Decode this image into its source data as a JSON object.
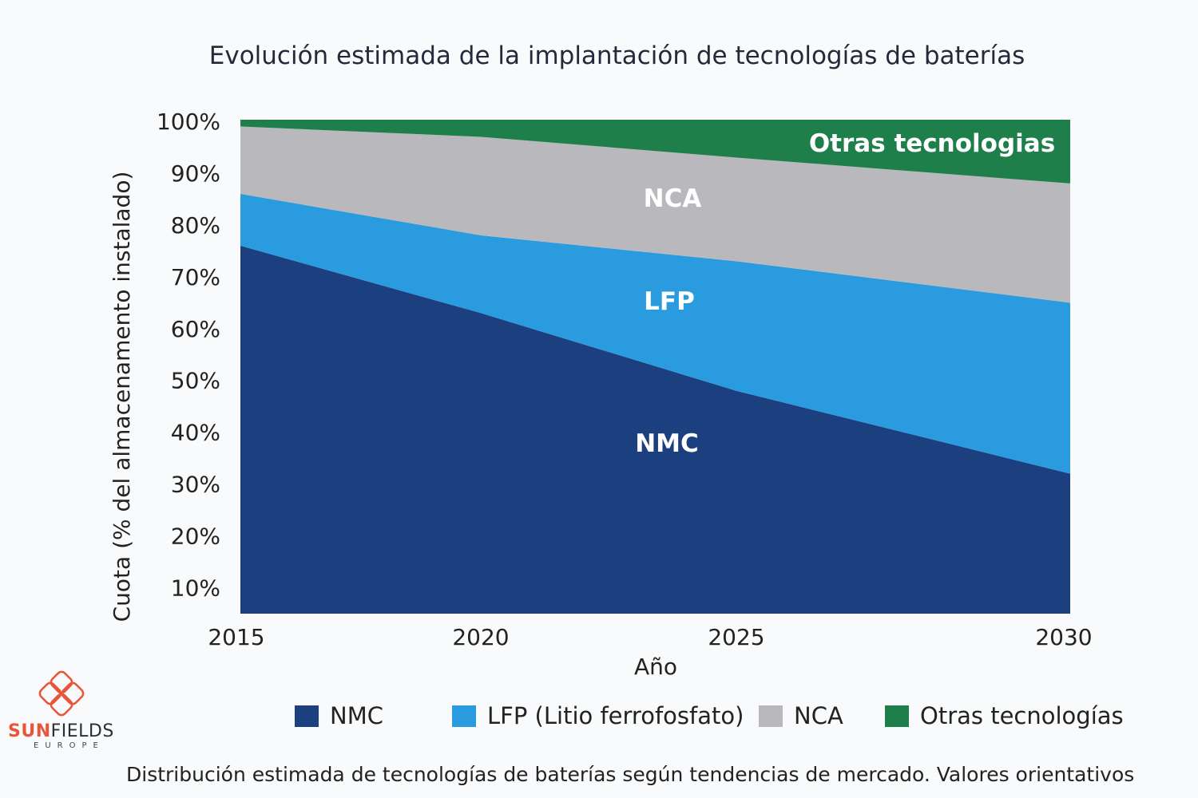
{
  "chart_data": {
    "type": "area",
    "stacked": true,
    "title": "Evolución estimada de la implantación de tecnologías de baterías",
    "xlabel": "Año",
    "ylabel": "Cuota (% del almacenamento instalado)",
    "x": [
      2015,
      2020,
      2025,
      2030
    ],
    "xticks": [
      "2015",
      "2020",
      "2025",
      "2030"
    ],
    "yticks": [
      "10%",
      "20%",
      "30%",
      "40%",
      "50%",
      "60%",
      "70%",
      "80%",
      "90%",
      "100%"
    ],
    "ylim": [
      5,
      100
    ],
    "grid": false,
    "legend_position": "bottom",
    "series": [
      {
        "name": "NMC",
        "values": [
          76,
          63,
          48,
          32
        ],
        "color": "#1c3f80",
        "area_label": "NMC"
      },
      {
        "name": "LFP (Litio ferrofosfato)",
        "values": [
          10,
          15,
          25,
          33
        ],
        "color": "#2b9be0",
        "area_label": "LFP"
      },
      {
        "name": "NCA",
        "values": [
          13,
          19,
          20,
          23
        ],
        "color": "#b9b9bd",
        "area_label": "NCA"
      },
      {
        "name": "Otras tecnologías",
        "values": [
          1,
          3,
          7,
          12
        ],
        "color": "#1f7f4a",
        "area_label": "Otras tecnologias"
      }
    ]
  },
  "footnote": "Distribución estimada de tecnologías de baterías según tendencias de mercado. Valores orientativos",
  "logo": {
    "brand_a": "SUN",
    "brand_b": "FIELDS",
    "sub": "EUROPE",
    "color": "#e8553a"
  }
}
